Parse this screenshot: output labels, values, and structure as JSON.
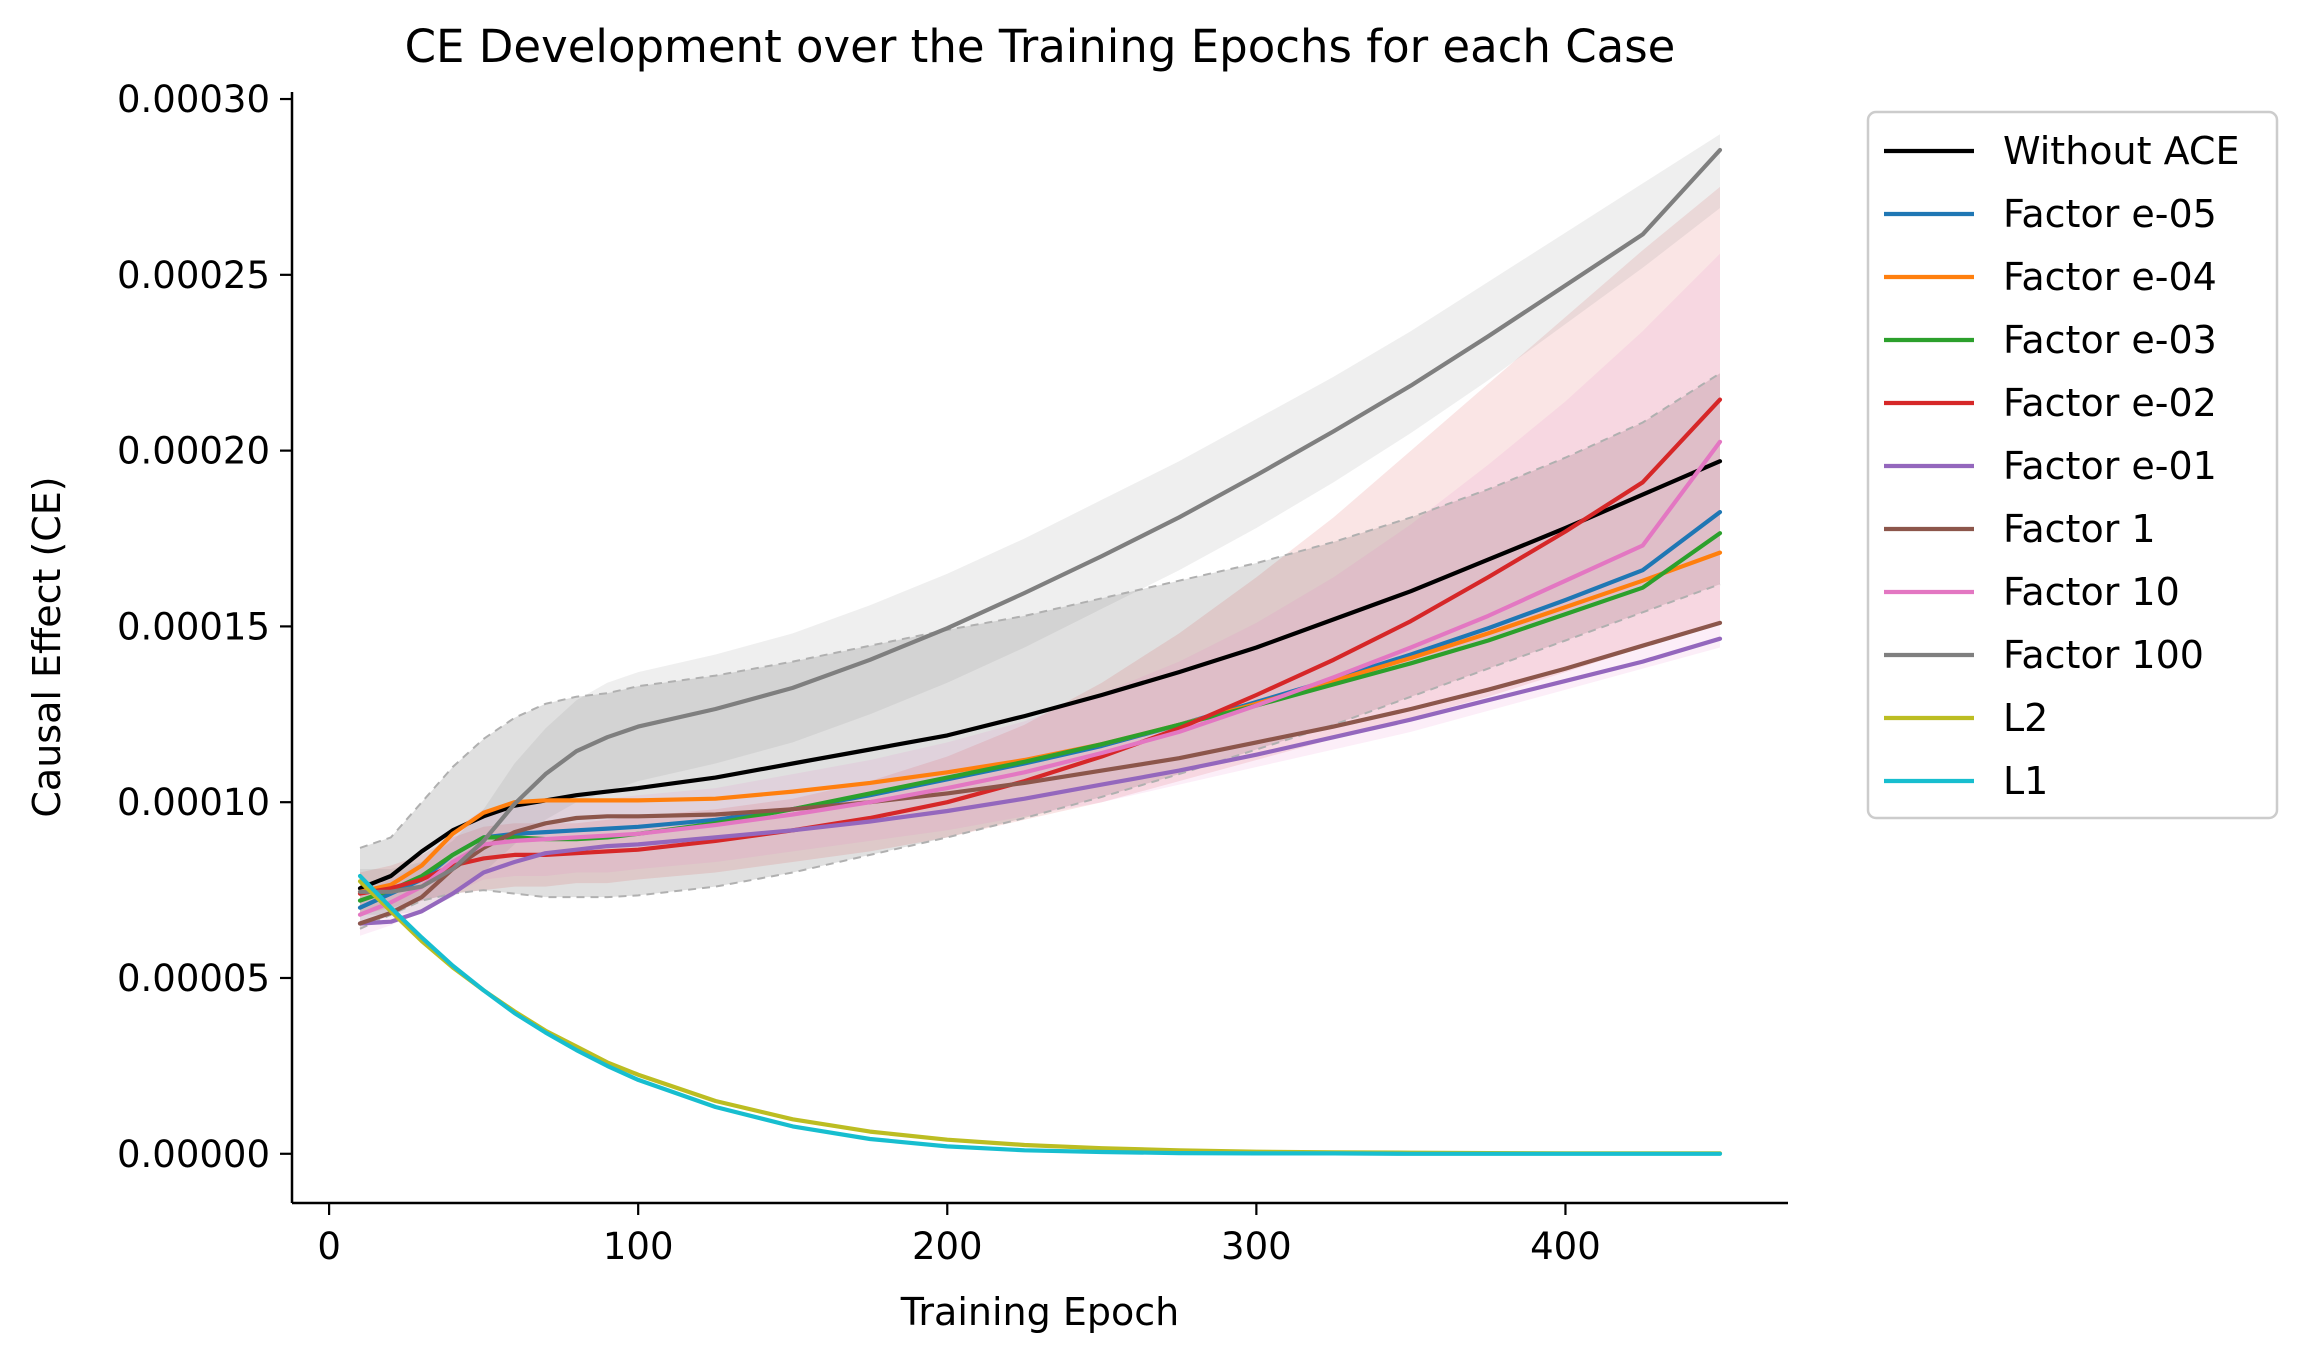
{
  "chart_data": {
    "type": "line",
    "title": "CE Development over the Training Epochs for each Case",
    "xlabel": "Training Epoch",
    "ylabel": "Causal Effect (CE)",
    "xlim": [
      -12,
      472
    ],
    "ylim": [
      -1.4e-05,
      0.000302
    ],
    "xticks": [
      0,
      100,
      200,
      300,
      400
    ],
    "xtick_labels": [
      "0",
      "100",
      "200",
      "300",
      "400"
    ],
    "yticks": [
      0,
      5e-05,
      0.0001,
      0.00015,
      0.0002,
      0.00025,
      0.0003
    ],
    "ytick_labels": [
      "0.00000",
      "0.00005",
      "0.00010",
      "0.00015",
      "0.00020",
      "0.00025",
      "0.00030"
    ],
    "grid": false,
    "legend_position": "outside upper right",
    "x": [
      10,
      20,
      30,
      40,
      50,
      60,
      70,
      80,
      90,
      100,
      125,
      150,
      175,
      200,
      225,
      250,
      275,
      300,
      325,
      350,
      375,
      400,
      425,
      450
    ],
    "series": [
      {
        "name": "Without ACE",
        "color": "#000000",
        "values": [
          7.55e-05,
          7.9e-05,
          8.6e-05,
          9.2e-05,
          9.6e-05,
          9.9e-05,
          0.0001005,
          0.000102,
          0.000103,
          0.000104,
          0.000107,
          0.000111,
          0.000115,
          0.000119,
          0.0001245,
          0.0001305,
          0.000137,
          0.000144,
          0.000152,
          0.00016,
          0.000169,
          0.000178,
          0.0001875,
          0.000197
        ],
        "band": {
          "lower": [
            6.4e-05,
            6.8e-05,
            7.2e-05,
            7.4e-05,
            7.5e-05,
            7.4e-05,
            7.3e-05,
            7.3e-05,
            7.3e-05,
            7.35e-05,
            7.6e-05,
            8e-05,
            8.5e-05,
            9e-05,
            9.55e-05,
            0.0001015,
            0.000108,
            0.000115,
            0.000122,
            0.00013,
            0.000138,
            0.000146,
            0.000154,
            0.000162
          ],
          "upper": [
            8.7e-05,
            9e-05,
            0.0001,
            0.00011,
            0.000118,
            0.000124,
            0.000128,
            0.00013,
            0.000131,
            0.000133,
            0.000136,
            0.00014,
            0.0001445,
            0.000149,
            0.000153,
            0.000158,
            0.000163,
            0.000168,
            0.000174,
            0.000181,
            0.000189,
            0.000198,
            0.000208,
            0.000222
          ]
        }
      },
      {
        "name": "Factor e-05",
        "color": "#1f77b4",
        "values": [
          7e-05,
          7.4e-05,
          7.8e-05,
          8.5e-05,
          9e-05,
          9.1e-05,
          9.15e-05,
          9.2e-05,
          9.25e-05,
          9.3e-05,
          9.5e-05,
          9.8e-05,
          0.000102,
          0.0001065,
          0.000111,
          0.000116,
          0.000122,
          0.0001285,
          0.000135,
          0.000142,
          0.0001495,
          0.0001575,
          0.000166,
          0.0001825
        ]
      },
      {
        "name": "Factor e-04",
        "color": "#ff7f0e",
        "values": [
          7.45e-05,
          7.65e-05,
          8.2e-05,
          9.1e-05,
          9.7e-05,
          0.0001,
          0.0001005,
          0.0001005,
          0.0001005,
          0.0001005,
          0.000101,
          0.000103,
          0.0001055,
          0.0001085,
          0.000112,
          0.0001165,
          0.000122,
          0.000128,
          0.0001345,
          0.000141,
          0.000148,
          0.0001555,
          0.000163,
          0.000171
        ]
      },
      {
        "name": "Factor e-03",
        "color": "#2ca02c",
        "values": [
          7.2e-05,
          7.5e-05,
          7.9e-05,
          8.5e-05,
          9e-05,
          9e-05,
          8.95e-05,
          8.95e-05,
          9e-05,
          9.1e-05,
          9.4e-05,
          9.8e-05,
          0.0001025,
          0.000107,
          0.0001115,
          0.0001165,
          0.000122,
          0.0001275,
          0.0001335,
          0.0001395,
          0.000146,
          0.0001535,
          0.000161,
          0.0001765
        ]
      },
      {
        "name": "Factor e-02",
        "color": "#d62728",
        "values": [
          7.4e-05,
          7.55e-05,
          7.8e-05,
          8.2e-05,
          8.4e-05,
          8.5e-05,
          8.5e-05,
          8.55e-05,
          8.6e-05,
          8.65e-05,
          8.9e-05,
          9.2e-05,
          9.55e-05,
          0.0001,
          0.000106,
          0.000113,
          0.000121,
          0.0001305,
          0.0001405,
          0.0001515,
          0.000164,
          0.000177,
          0.000191,
          0.0002145
        ],
        "band": {
          "lower": [
            6.8e-05,
            7e-05,
            7.2e-05,
            7.4e-05,
            7.5e-05,
            7.6e-05,
            7.6e-05,
            7.7e-05,
            7.7e-05,
            7.8e-05,
            8e-05,
            8.3e-05,
            8.6e-05,
            9e-05,
            9.5e-05,
            0.0001,
            0.000106,
            0.000112,
            0.000118,
            0.000124,
            0.00013,
            0.000137,
            0.000144,
            0.000151
          ],
          "upper": [
            8e-05,
            8.2e-05,
            8.5e-05,
            9e-05,
            9.3e-05,
            9.4e-05,
            9.4e-05,
            9.4e-05,
            9.5e-05,
            9.6e-05,
            9.8e-05,
            0.000101,
            0.000106,
            0.000113,
            0.000122,
            0.000134,
            0.000148,
            0.000164,
            0.000181,
            0.0002,
            0.000219,
            0.000238,
            0.000257,
            0.000275
          ]
        }
      },
      {
        "name": "Factor e-01",
        "color": "#9467bd",
        "values": [
          6.55e-05,
          6.6e-05,
          6.9e-05,
          7.4e-05,
          8e-05,
          8.3e-05,
          8.55e-05,
          8.65e-05,
          8.75e-05,
          8.8e-05,
          9e-05,
          9.2e-05,
          9.45e-05,
          9.75e-05,
          0.000101,
          0.000105,
          0.000109,
          0.0001135,
          0.0001185,
          0.0001235,
          0.000129,
          0.0001345,
          0.00014,
          0.0001465
        ]
      },
      {
        "name": "Factor 1",
        "color": "#8c564b",
        "values": [
          6.55e-05,
          6.85e-05,
          7.3e-05,
          8.1e-05,
          8.7e-05,
          9.15e-05,
          9.4e-05,
          9.55e-05,
          9.6e-05,
          9.6e-05,
          9.65e-05,
          9.8e-05,
          0.0001,
          0.0001025,
          0.0001055,
          0.000109,
          0.0001125,
          0.000117,
          0.0001215,
          0.0001265,
          0.000132,
          0.000138,
          0.0001445,
          0.000151
        ]
      },
      {
        "name": "Factor 10",
        "color": "#e377c2",
        "values": [
          6.8e-05,
          7.15e-05,
          7.6e-05,
          8.3e-05,
          8.8e-05,
          8.9e-05,
          8.95e-05,
          9e-05,
          9.05e-05,
          9.1e-05,
          9.35e-05,
          9.65e-05,
          0.0001,
          0.000104,
          0.0001085,
          0.000114,
          0.00012,
          0.0001275,
          0.0001355,
          0.000144,
          0.000153,
          0.000163,
          0.000173,
          0.0002025
        ],
        "band": {
          "lower": [
            6.2e-05,
            6.5e-05,
            6.9e-05,
            7.4e-05,
            7.8e-05,
            7.9e-05,
            7.9e-05,
            8e-05,
            8e-05,
            8.1e-05,
            8.3e-05,
            8.6e-05,
            8.9e-05,
            9.2e-05,
            9.6e-05,
            0.0001,
            0.000105,
            0.00011,
            0.000115,
            0.00012,
            0.000126,
            0.000132,
            0.000138,
            0.000144
          ],
          "upper": [
            7.4e-05,
            7.8e-05,
            8.3e-05,
            9.2e-05,
            9.8e-05,
            9.9e-05,
            0.0001,
            0.0001,
            0.000101,
            0.000102,
            0.000104,
            0.000108,
            0.000112,
            0.000117,
            0.000123,
            0.000131,
            0.00014,
            0.000151,
            0.000164,
            0.000179,
            0.000196,
            0.000214,
            0.000234,
            0.000256
          ]
        }
      },
      {
        "name": "Factor 100",
        "color": "#7f7f7f",
        "values": [
          7.45e-05,
          7.45e-05,
          7.6e-05,
          8.1e-05,
          8.9e-05,
          9.95e-05,
          0.000108,
          0.0001145,
          0.0001185,
          0.0001215,
          0.0001265,
          0.0001325,
          0.0001405,
          0.0001495,
          0.0001595,
          0.00017,
          0.000181,
          0.000193,
          0.0002055,
          0.0002185,
          0.0002325,
          0.000247,
          0.0002615,
          0.0002855
        ],
        "band": {
          "lower": [
            6.8e-05,
            6.8e-05,
            6.9e-05,
            7.3e-05,
            8e-05,
            8.8e-05,
            9.5e-05,
            0.0001,
            0.000103,
            0.000106,
            0.000111,
            0.000117,
            0.000125,
            0.000134,
            0.000144,
            0.000155,
            0.000166,
            0.000178,
            0.000191,
            0.000205,
            0.00022,
            0.000236,
            0.000252,
            0.000269
          ],
          "upper": [
            8.1e-05,
            8.1e-05,
            8.3e-05,
            8.9e-05,
            9.8e-05,
            0.000111,
            0.000121,
            0.000129,
            0.000134,
            0.000137,
            0.000142,
            0.000148,
            0.000156,
            0.000165,
            0.000175,
            0.000186,
            0.000197,
            0.000209,
            0.000221,
            0.000234,
            0.000248,
            0.000262,
            0.000276,
            0.00029
          ]
        }
      },
      {
        "name": "L2",
        "color": "#bcbd22",
        "values": [
          7.75e-05,
          6.9e-05,
          6.05e-05,
          5.3e-05,
          4.65e-05,
          4.05e-05,
          3.5e-05,
          3.05e-05,
          2.6e-05,
          2.25e-05,
          1.5e-05,
          9.8e-06,
          6.3e-06,
          4e-06,
          2.5e-06,
          1.6e-06,
          1e-06,
          6e-07,
          4e-07,
          3e-07,
          2e-07,
          1e-07,
          1e-07,
          1e-07
        ]
      },
      {
        "name": "L1",
        "color": "#17becf",
        "values": [
          7.9e-05,
          7e-05,
          6.15e-05,
          5.35e-05,
          4.65e-05,
          4e-05,
          3.45e-05,
          2.95e-05,
          2.5e-05,
          2.1e-05,
          1.33e-05,
          7.8e-06,
          4.2e-06,
          2.1e-06,
          1e-06,
          5e-07,
          2e-07,
          1e-07,
          1e-07,
          0,
          0,
          0,
          0,
          0
        ]
      }
    ]
  }
}
